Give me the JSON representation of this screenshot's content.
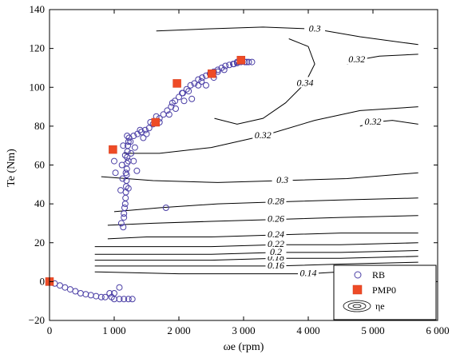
{
  "chart_data": {
    "type": "scatter",
    "title": "",
    "xlabel": "ωe (rpm)",
    "ylabel": "Te (Nm)",
    "xlim": [
      0,
      6000
    ],
    "ylim": [
      -20,
      140
    ],
    "x_ticks": [
      "0",
      "1 000",
      "2 000",
      "3 000",
      "4 000",
      "5 000",
      "6 000"
    ],
    "y_ticks": [
      "−20",
      "0",
      "20",
      "40",
      "60",
      "80",
      "100",
      "120",
      "140"
    ],
    "grid": false,
    "legend_position": "bottom-right",
    "legend": [
      "RB",
      "PMP0",
      "ηe"
    ],
    "colors": {
      "rb": "#4b3fa6",
      "pmp": "#ee4b26",
      "contour": "#000000"
    },
    "series": [
      {
        "name": "RB",
        "marker": "open-circle",
        "points": [
          [
            0,
            0
          ],
          [
            80,
            -1
          ],
          [
            160,
            -2
          ],
          [
            240,
            -3
          ],
          [
            320,
            -4
          ],
          [
            400,
            -5
          ],
          [
            480,
            -6
          ],
          [
            560,
            -6.5
          ],
          [
            640,
            -7
          ],
          [
            720,
            -7.5
          ],
          [
            800,
            -8
          ],
          [
            860,
            -8
          ],
          [
            930,
            -6
          ],
          [
            1000,
            -6
          ],
          [
            1080,
            -3
          ],
          [
            960,
            -8
          ],
          [
            1000,
            -9
          ],
          [
            1080,
            -9
          ],
          [
            1150,
            -9
          ],
          [
            1220,
            -9
          ],
          [
            1280,
            -9
          ],
          [
            1150,
            33
          ],
          [
            1150,
            35
          ],
          [
            1160,
            38
          ],
          [
            1170,
            40
          ],
          [
            1175,
            43
          ],
          [
            1180,
            46
          ],
          [
            1185,
            49
          ],
          [
            1190,
            52
          ],
          [
            1192,
            55
          ],
          [
            1195,
            58
          ],
          [
            1198,
            61
          ],
          [
            1200,
            64
          ],
          [
            1205,
            67
          ],
          [
            1210,
            70
          ],
          [
            1220,
            72
          ],
          [
            1230,
            74
          ],
          [
            1100,
            47
          ],
          [
            1020,
            56
          ],
          [
            1130,
            53
          ],
          [
            1180,
            56
          ],
          [
            1220,
            62
          ],
          [
            1260,
            66
          ],
          [
            1350,
            57
          ],
          [
            1170,
            65
          ],
          [
            1120,
            60
          ],
          [
            1300,
            75
          ],
          [
            1360,
            76
          ],
          [
            1420,
            77
          ],
          [
            1480,
            78
          ],
          [
            1540,
            79
          ],
          [
            1600,
            81
          ],
          [
            1650,
            82
          ],
          [
            1700,
            84
          ],
          [
            1760,
            86
          ],
          [
            1820,
            88
          ],
          [
            1880,
            90
          ],
          [
            1940,
            93
          ],
          [
            2000,
            95
          ],
          [
            2060,
            97
          ],
          [
            2120,
            99
          ],
          [
            2180,
            101
          ],
          [
            2240,
            102
          ],
          [
            2300,
            104
          ],
          [
            2360,
            105
          ],
          [
            2420,
            106
          ],
          [
            2480,
            107
          ],
          [
            2540,
            108
          ],
          [
            2600,
            109
          ],
          [
            2660,
            110
          ],
          [
            2720,
            111
          ],
          [
            2780,
            111.5
          ],
          [
            2840,
            112
          ],
          [
            2900,
            112.5
          ],
          [
            2960,
            113
          ],
          [
            3020,
            113
          ],
          [
            3080,
            113
          ],
          [
            3130,
            113
          ],
          [
            1560,
            82
          ],
          [
            1700,
            82
          ],
          [
            1850,
            86
          ],
          [
            2080,
            93
          ],
          [
            2200,
            94
          ],
          [
            2300,
            101
          ],
          [
            2420,
            101
          ],
          [
            2540,
            105
          ],
          [
            2700,
            109
          ],
          [
            1450,
            74
          ],
          [
            1500,
            76
          ],
          [
            1950,
            89
          ],
          [
            2900,
            113
          ],
          [
            1000,
            62
          ],
          [
            1200,
            75
          ],
          [
            2050,
            97
          ],
          [
            1400,
            78
          ],
          [
            1650,
            85
          ],
          [
            1900,
            92
          ],
          [
            2150,
            98
          ],
          [
            2350,
            103
          ],
          [
            2600,
            108
          ],
          [
            2850,
            112
          ],
          [
            3050,
            113
          ],
          [
            1800,
            38
          ],
          [
            1220,
            48
          ],
          [
            1300,
            62
          ],
          [
            1250,
            72
          ],
          [
            1320,
            69
          ],
          [
            1140,
            70
          ],
          [
            1110,
            30
          ],
          [
            1140,
            28
          ]
        ]
      },
      {
        "name": "PMP0",
        "marker": "filled-square",
        "points": [
          [
            0,
            0
          ],
          [
            980,
            68
          ],
          [
            1640,
            82
          ],
          [
            1970,
            102
          ],
          [
            2510,
            107
          ],
          [
            2960,
            114
          ]
        ]
      }
    ],
    "contours": [
      {
        "level": 0.14,
        "label": "0.14",
        "points": [
          [
            700,
            5
          ],
          [
            2000,
            4
          ],
          [
            3000,
            4
          ],
          [
            4000,
            4
          ],
          [
            5000,
            6
          ],
          [
            5700,
            7
          ]
        ]
      },
      {
        "level": 0.16,
        "label": "0.16",
        "points": [
          [
            700,
            8
          ],
          [
            1500,
            8
          ],
          [
            2500,
            8
          ],
          [
            3500,
            8
          ],
          [
            4500,
            9
          ],
          [
            5700,
            10
          ]
        ]
      },
      {
        "level": 0.18,
        "label": "0.18",
        "points": [
          [
            700,
            11
          ],
          [
            1500,
            11
          ],
          [
            2500,
            11
          ],
          [
            3500,
            12
          ],
          [
            4500,
            12
          ],
          [
            5700,
            13
          ]
        ]
      },
      {
        "level": 0.2,
        "label": "0.2",
        "points": [
          [
            700,
            14
          ],
          [
            1500,
            14
          ],
          [
            2500,
            14
          ],
          [
            3500,
            15
          ],
          [
            4500,
            15
          ],
          [
            5700,
            16
          ]
        ]
      },
      {
        "level": 0.22,
        "label": "0.22",
        "points": [
          [
            700,
            18
          ],
          [
            1500,
            18
          ],
          [
            2500,
            18
          ],
          [
            3500,
            19
          ],
          [
            4500,
            19
          ],
          [
            5700,
            20
          ]
        ]
      },
      {
        "level": 0.24,
        "label": "0.24",
        "points": [
          [
            900,
            22
          ],
          [
            1500,
            23
          ],
          [
            2500,
            23
          ],
          [
            3500,
            24
          ],
          [
            4500,
            25
          ],
          [
            5700,
            25
          ]
        ]
      },
      {
        "level": 0.26,
        "label": "0.26",
        "points": [
          [
            900,
            29
          ],
          [
            1600,
            30
          ],
          [
            2500,
            31
          ],
          [
            3500,
            32
          ],
          [
            4500,
            33
          ],
          [
            5700,
            34
          ]
        ]
      },
      {
        "level": 0.28,
        "label": "0.28",
        "points": [
          [
            1000,
            36
          ],
          [
            1700,
            38
          ],
          [
            2600,
            40
          ],
          [
            3500,
            41
          ],
          [
            4500,
            42
          ],
          [
            5700,
            43
          ]
        ]
      },
      {
        "level": 0.3,
        "label": "0.3",
        "points": [
          [
            800,
            54
          ],
          [
            1600,
            52
          ],
          [
            2600,
            51
          ],
          [
            3600,
            52
          ],
          [
            4600,
            53
          ],
          [
            5700,
            56
          ]
        ]
      },
      {
        "level": 0.32,
        "label": "0.32",
        "points": [
          [
            1150,
            66
          ],
          [
            1700,
            66
          ],
          [
            2500,
            69
          ],
          [
            3300,
            75
          ],
          [
            4100,
            83
          ],
          [
            4800,
            88
          ],
          [
            5700,
            90
          ]
        ]
      },
      {
        "level": 0.34,
        "label": "0.34",
        "points": [
          [
            2550,
            84
          ],
          [
            2900,
            81
          ],
          [
            3300,
            84
          ],
          [
            3650,
            92
          ],
          [
            3950,
            102
          ],
          [
            4100,
            112
          ],
          [
            4000,
            121
          ],
          [
            3700,
            125
          ]
        ]
      },
      {
        "level": 0.3,
        "label": "0.3",
        "points": [
          [
            1650,
            129
          ],
          [
            2400,
            130
          ],
          [
            3300,
            131
          ],
          [
            4100,
            130
          ],
          [
            4800,
            126
          ],
          [
            5700,
            122
          ]
        ]
      },
      {
        "level": 0.32,
        "label": "0.32",
        "points": [
          [
            5700,
            117
          ],
          [
            5100,
            116
          ],
          [
            4750,
            114
          ],
          [
            4600,
            112
          ]
        ]
      },
      {
        "level": 0.32,
        "label": "0.32",
        "points": [
          [
            5700,
            81
          ],
          [
            5300,
            83
          ],
          [
            5000,
            82
          ],
          [
            4800,
            80
          ]
        ]
      }
    ]
  }
}
